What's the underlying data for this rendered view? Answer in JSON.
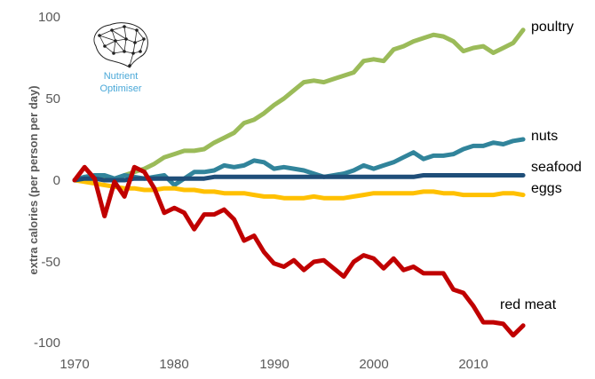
{
  "logo": {
    "line1": "Nutrient",
    "line2": "Optimiser",
    "icon": "brain-network-icon"
  },
  "chart_data": {
    "type": "line",
    "title": "",
    "xlabel": "",
    "ylabel": "extra calories (per person per day)",
    "xlim": [
      1970,
      2018
    ],
    "ylim": [
      -100,
      100
    ],
    "x_ticks": [
      "1970",
      "1980",
      "1990",
      "2000",
      "2010"
    ],
    "y_ticks": [
      "100",
      "50",
      "0",
      "-50",
      "-100"
    ],
    "grid": false,
    "x": [
      1970,
      1971,
      1972,
      1973,
      1974,
      1975,
      1976,
      1977,
      1978,
      1979,
      1980,
      1981,
      1982,
      1983,
      1984,
      1985,
      1986,
      1987,
      1988,
      1989,
      1990,
      1991,
      1992,
      1993,
      1994,
      1995,
      1996,
      1997,
      1998,
      1999,
      2000,
      2001,
      2002,
      2003,
      2004,
      2005,
      2006,
      2007,
      2008,
      2009,
      2010,
      2011,
      2012,
      2013,
      2014,
      2015
    ],
    "series": [
      {
        "name": "poultry",
        "color": "#9bbb59",
        "values": [
          0,
          1,
          1,
          2,
          0,
          3,
          5,
          7,
          10,
          14,
          16,
          18,
          18,
          19,
          23,
          26,
          29,
          35,
          37,
          41,
          46,
          50,
          55,
          60,
          61,
          60,
          62,
          64,
          66,
          73,
          74,
          73,
          80,
          82,
          85,
          87,
          89,
          88,
          85,
          79,
          81,
          82,
          78,
          81,
          84,
          92
        ]
      },
      {
        "name": "nuts",
        "color": "#31849b",
        "values": [
          0,
          2,
          3,
          3,
          1,
          3,
          2,
          1,
          2,
          3,
          -3,
          1,
          5,
          5,
          6,
          9,
          8,
          9,
          12,
          11,
          7,
          8,
          7,
          6,
          4,
          2,
          3,
          4,
          6,
          9,
          7,
          9,
          11,
          14,
          17,
          13,
          15,
          15,
          16,
          19,
          21,
          21,
          23,
          22,
          24,
          25
        ]
      },
      {
        "name": "seafood",
        "color": "#1f4e79",
        "values": [
          0,
          1,
          1,
          0,
          0,
          0,
          1,
          1,
          1,
          1,
          1,
          1,
          1,
          1,
          2,
          2,
          2,
          2,
          2,
          2,
          2,
          2,
          2,
          2,
          2,
          2,
          2,
          2,
          2,
          2,
          2,
          2,
          2,
          2,
          2,
          3,
          3,
          3,
          3,
          3,
          3,
          3,
          3,
          3,
          3,
          3
        ]
      },
      {
        "name": "eggs",
        "color": "#ffc000",
        "values": [
          0,
          -1,
          -2,
          -3,
          -4,
          -5,
          -5,
          -6,
          -6,
          -5,
          -5,
          -6,
          -6,
          -7,
          -7,
          -8,
          -8,
          -8,
          -9,
          -10,
          -10,
          -11,
          -11,
          -11,
          -10,
          -11,
          -11,
          -11,
          -10,
          -9,
          -8,
          -8,
          -8,
          -8,
          -8,
          -7,
          -7,
          -8,
          -8,
          -9,
          -9,
          -9,
          -9,
          -8,
          -8,
          -9
        ]
      },
      {
        "name": "red meat",
        "color": "#c00000",
        "values": [
          0,
          8,
          1,
          -22,
          -1,
          -10,
          8,
          5,
          -5,
          -20,
          -17,
          -20,
          -30,
          -21,
          -21,
          -18,
          -24,
          -37,
          -34,
          -44,
          -51,
          -53,
          -49,
          -55,
          -50,
          -49,
          -54,
          -59,
          -50,
          -46,
          -48,
          -54,
          -48,
          -55,
          -53,
          -57,
          -57,
          -57,
          -67,
          -69,
          -77,
          -87,
          -87,
          -88,
          -95,
          -89
        ]
      }
    ]
  }
}
